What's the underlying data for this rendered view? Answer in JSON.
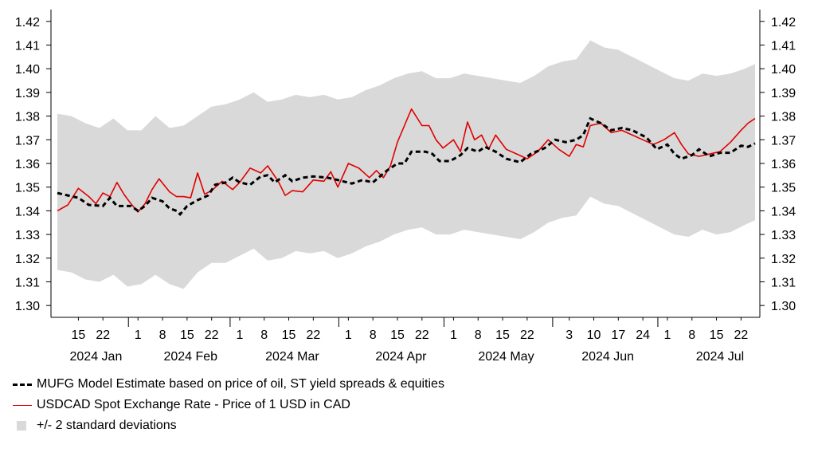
{
  "chart_data": {
    "type": "line",
    "ylim": [
      1.3,
      1.42
    ],
    "yticks": [
      1.3,
      1.31,
      1.32,
      1.33,
      1.34,
      1.35,
      1.36,
      1.37,
      1.38,
      1.39,
      1.4,
      1.41,
      1.42
    ],
    "ytick_labels": [
      "1.30",
      "1.31",
      "1.32",
      "1.33",
      "1.34",
      "1.35",
      "1.36",
      "1.37",
      "1.38",
      "1.39",
      "1.40",
      "1.41",
      "1.42"
    ],
    "xlim": [
      "2024-01-09",
      "2024-07-26"
    ],
    "xticks": [
      {
        "date": "2024-01-15",
        "label": "15"
      },
      {
        "date": "2024-01-22",
        "label": "22"
      },
      {
        "date": "2024-02-01",
        "label": "1"
      },
      {
        "date": "2024-02-08",
        "label": "8"
      },
      {
        "date": "2024-02-15",
        "label": "15"
      },
      {
        "date": "2024-02-22",
        "label": "22"
      },
      {
        "date": "2024-03-01",
        "label": "1"
      },
      {
        "date": "2024-03-08",
        "label": "8"
      },
      {
        "date": "2024-03-15",
        "label": "15"
      },
      {
        "date": "2024-03-22",
        "label": "22"
      },
      {
        "date": "2024-04-01",
        "label": "1"
      },
      {
        "date": "2024-04-08",
        "label": "8"
      },
      {
        "date": "2024-04-15",
        "label": "15"
      },
      {
        "date": "2024-04-22",
        "label": "22"
      },
      {
        "date": "2024-05-01",
        "label": "1"
      },
      {
        "date": "2024-05-08",
        "label": "8"
      },
      {
        "date": "2024-05-15",
        "label": "15"
      },
      {
        "date": "2024-05-22",
        "label": "22"
      },
      {
        "date": "2024-06-03",
        "label": "3"
      },
      {
        "date": "2024-06-10",
        "label": "10"
      },
      {
        "date": "2024-06-17",
        "label": "17"
      },
      {
        "date": "2024-06-24",
        "label": "24"
      },
      {
        "date": "2024-07-01",
        "label": "1"
      },
      {
        "date": "2024-07-08",
        "label": "8"
      },
      {
        "date": "2024-07-15",
        "label": "15"
      },
      {
        "date": "2024-07-22",
        "label": "22"
      }
    ],
    "month_labels": [
      {
        "date": "2024-01-20",
        "label": "2024 Jan"
      },
      {
        "date": "2024-02-16",
        "label": "2024 Feb"
      },
      {
        "date": "2024-03-16",
        "label": "2024 Mar"
      },
      {
        "date": "2024-04-16",
        "label": "2024 Apr"
      },
      {
        "date": "2024-05-16",
        "label": "2024 May"
      },
      {
        "date": "2024-06-14",
        "label": "2024 Jun"
      },
      {
        "date": "2024-07-16",
        "label": "2024 Jul"
      }
    ],
    "month_separators": [
      "2024-02-01",
      "2024-03-01",
      "2024-04-01",
      "2024-05-01",
      "2024-06-01",
      "2024-07-01"
    ],
    "grid": false,
    "legend_position": "bottom-left",
    "colors": {
      "model": "#000000",
      "spot": "#e00000",
      "band": "#d9d9d9"
    },
    "series": [
      {
        "name": "MUFG Model Estimate based on price of oil, ST yield spreads & equities",
        "style": "dashed",
        "points": [
          [
            "2024-01-09",
            1.3475
          ],
          [
            "2024-01-12",
            1.3465
          ],
          [
            "2024-01-15",
            1.3455
          ],
          [
            "2024-01-18",
            1.3425
          ],
          [
            "2024-01-22",
            1.342
          ],
          [
            "2024-01-24",
            1.3455
          ],
          [
            "2024-01-26",
            1.342
          ],
          [
            "2024-01-30",
            1.342
          ],
          [
            "2024-02-01",
            1.34
          ],
          [
            "2024-02-03",
            1.342
          ],
          [
            "2024-02-05",
            1.3455
          ],
          [
            "2024-02-08",
            1.344
          ],
          [
            "2024-02-10",
            1.341
          ],
          [
            "2024-02-12",
            1.34
          ],
          [
            "2024-02-13",
            1.3385
          ],
          [
            "2024-02-15",
            1.342
          ],
          [
            "2024-02-18",
            1.3445
          ],
          [
            "2024-02-21",
            1.3465
          ],
          [
            "2024-02-23",
            1.351
          ],
          [
            "2024-02-26",
            1.352
          ],
          [
            "2024-02-28",
            1.354
          ],
          [
            "2024-03-01",
            1.352
          ],
          [
            "2024-03-04",
            1.351
          ],
          [
            "2024-03-07",
            1.3545
          ],
          [
            "2024-03-09",
            1.355
          ],
          [
            "2024-03-11",
            1.352
          ],
          [
            "2024-03-14",
            1.355
          ],
          [
            "2024-03-16",
            1.3525
          ],
          [
            "2024-03-19",
            1.354
          ],
          [
            "2024-03-22",
            1.3545
          ],
          [
            "2024-03-26",
            1.354
          ],
          [
            "2024-03-29",
            1.353
          ],
          [
            "2024-04-02",
            1.3515
          ],
          [
            "2024-04-05",
            1.353
          ],
          [
            "2024-04-08",
            1.352
          ],
          [
            "2024-04-10",
            1.3545
          ],
          [
            "2024-04-12",
            1.357
          ],
          [
            "2024-04-15",
            1.36
          ],
          [
            "2024-04-17",
            1.36
          ],
          [
            "2024-04-19",
            1.365
          ],
          [
            "2024-04-23",
            1.365
          ],
          [
            "2024-04-25",
            1.364
          ],
          [
            "2024-04-27",
            1.361
          ],
          [
            "2024-04-30",
            1.361
          ],
          [
            "2024-05-03",
            1.3635
          ],
          [
            "2024-05-05",
            1.3665
          ],
          [
            "2024-05-08",
            1.365
          ],
          [
            "2024-05-10",
            1.367
          ],
          [
            "2024-05-13",
            1.365
          ],
          [
            "2024-05-16",
            1.362
          ],
          [
            "2024-05-20",
            1.3605
          ],
          [
            "2024-05-23",
            1.364
          ],
          [
            "2024-05-27",
            1.3665
          ],
          [
            "2024-05-30",
            1.37
          ],
          [
            "2024-06-02",
            1.369
          ],
          [
            "2024-06-05",
            1.37
          ],
          [
            "2024-06-07",
            1.372
          ],
          [
            "2024-06-09",
            1.379
          ],
          [
            "2024-06-12",
            1.377
          ],
          [
            "2024-06-15",
            1.374
          ],
          [
            "2024-06-18",
            1.375
          ],
          [
            "2024-06-21",
            1.374
          ],
          [
            "2024-06-25",
            1.371
          ],
          [
            "2024-06-28",
            1.366
          ],
          [
            "2024-07-01",
            1.368
          ],
          [
            "2024-07-03",
            1.364
          ],
          [
            "2024-07-05",
            1.362
          ],
          [
            "2024-07-08",
            1.3635
          ],
          [
            "2024-07-10",
            1.366
          ],
          [
            "2024-07-13",
            1.363
          ],
          [
            "2024-07-16",
            1.3645
          ],
          [
            "2024-07-19",
            1.3645
          ],
          [
            "2024-07-22",
            1.3675
          ],
          [
            "2024-07-24",
            1.367
          ],
          [
            "2024-07-26",
            1.3685
          ]
        ]
      },
      {
        "name": "USDCAD Spot Exchange Rate - Price of 1 USD in CAD",
        "style": "solid",
        "points": [
          [
            "2024-01-09",
            1.34
          ],
          [
            "2024-01-12",
            1.3425
          ],
          [
            "2024-01-15",
            1.3495
          ],
          [
            "2024-01-18",
            1.346
          ],
          [
            "2024-01-20",
            1.343
          ],
          [
            "2024-01-22",
            1.3475
          ],
          [
            "2024-01-24",
            1.346
          ],
          [
            "2024-01-26",
            1.352
          ],
          [
            "2024-01-28",
            1.347
          ],
          [
            "2024-01-30",
            1.343
          ],
          [
            "2024-02-01",
            1.3395
          ],
          [
            "2024-02-03",
            1.343
          ],
          [
            "2024-02-05",
            1.349
          ],
          [
            "2024-02-07",
            1.3535
          ],
          [
            "2024-02-10",
            1.348
          ],
          [
            "2024-02-12",
            1.346
          ],
          [
            "2024-02-14",
            1.346
          ],
          [
            "2024-02-16",
            1.3455
          ],
          [
            "2024-02-18",
            1.356
          ],
          [
            "2024-02-20",
            1.347
          ],
          [
            "2024-02-22",
            1.3485
          ],
          [
            "2024-02-25",
            1.3525
          ],
          [
            "2024-02-28",
            1.349
          ],
          [
            "2024-03-01",
            1.352
          ],
          [
            "2024-03-04",
            1.358
          ],
          [
            "2024-03-07",
            1.356
          ],
          [
            "2024-03-09",
            1.359
          ],
          [
            "2024-03-12",
            1.3525
          ],
          [
            "2024-03-14",
            1.3465
          ],
          [
            "2024-03-16",
            1.3485
          ],
          [
            "2024-03-19",
            1.348
          ],
          [
            "2024-03-22",
            1.353
          ],
          [
            "2024-03-25",
            1.3525
          ],
          [
            "2024-03-27",
            1.3565
          ],
          [
            "2024-03-29",
            1.35
          ],
          [
            "2024-04-01",
            1.36
          ],
          [
            "2024-04-04",
            1.358
          ],
          [
            "2024-04-07",
            1.354
          ],
          [
            "2024-04-09",
            1.357
          ],
          [
            "2024-04-11",
            1.354
          ],
          [
            "2024-04-13",
            1.359
          ],
          [
            "2024-04-15",
            1.369
          ],
          [
            "2024-04-17",
            1.376
          ],
          [
            "2024-04-19",
            1.383
          ],
          [
            "2024-04-22",
            1.376
          ],
          [
            "2024-04-24",
            1.376
          ],
          [
            "2024-04-26",
            1.37
          ],
          [
            "2024-04-28",
            1.3665
          ],
          [
            "2024-05-01",
            1.37
          ],
          [
            "2024-05-03",
            1.365
          ],
          [
            "2024-05-05",
            1.3775
          ],
          [
            "2024-05-07",
            1.37
          ],
          [
            "2024-05-09",
            1.372
          ],
          [
            "2024-05-11",
            1.366
          ],
          [
            "2024-05-13",
            1.372
          ],
          [
            "2024-05-16",
            1.366
          ],
          [
            "2024-05-19",
            1.364
          ],
          [
            "2024-05-22",
            1.362
          ],
          [
            "2024-05-25",
            1.365
          ],
          [
            "2024-05-28",
            1.37
          ],
          [
            "2024-05-31",
            1.366
          ],
          [
            "2024-06-03",
            1.363
          ],
          [
            "2024-06-05",
            1.368
          ],
          [
            "2024-06-07",
            1.367
          ],
          [
            "2024-06-09",
            1.376
          ],
          [
            "2024-06-12",
            1.377
          ],
          [
            "2024-06-15",
            1.373
          ],
          [
            "2024-06-18",
            1.374
          ],
          [
            "2024-06-21",
            1.372
          ],
          [
            "2024-06-24",
            1.37
          ],
          [
            "2024-06-27",
            1.368
          ],
          [
            "2024-06-30",
            1.37
          ],
          [
            "2024-07-03",
            1.373
          ],
          [
            "2024-07-05",
            1.368
          ],
          [
            "2024-07-07",
            1.364
          ],
          [
            "2024-07-10",
            1.363
          ],
          [
            "2024-07-13",
            1.364
          ],
          [
            "2024-07-16",
            1.365
          ],
          [
            "2024-07-19",
            1.369
          ],
          [
            "2024-07-22",
            1.374
          ],
          [
            "2024-07-24",
            1.377
          ],
          [
            "2024-07-26",
            1.379
          ]
        ]
      },
      {
        "name": "+/- 2 standard deviations",
        "style": "band",
        "points": [
          [
            "2024-01-09",
            1.315,
            1.381
          ],
          [
            "2024-01-13",
            1.314,
            1.38
          ],
          [
            "2024-01-17",
            1.311,
            1.377
          ],
          [
            "2024-01-21",
            1.31,
            1.375
          ],
          [
            "2024-01-25",
            1.313,
            1.379
          ],
          [
            "2024-01-29",
            1.308,
            1.374
          ],
          [
            "2024-02-02",
            1.309,
            1.374
          ],
          [
            "2024-02-06",
            1.313,
            1.38
          ],
          [
            "2024-02-10",
            1.309,
            1.375
          ],
          [
            "2024-02-14",
            1.307,
            1.376
          ],
          [
            "2024-02-18",
            1.314,
            1.38
          ],
          [
            "2024-02-22",
            1.318,
            1.384
          ],
          [
            "2024-02-26",
            1.318,
            1.385
          ],
          [
            "2024-03-01",
            1.321,
            1.387
          ],
          [
            "2024-03-05",
            1.324,
            1.39
          ],
          [
            "2024-03-09",
            1.319,
            1.386
          ],
          [
            "2024-03-13",
            1.32,
            1.387
          ],
          [
            "2024-03-17",
            1.323,
            1.389
          ],
          [
            "2024-03-21",
            1.322,
            1.388
          ],
          [
            "2024-03-25",
            1.323,
            1.389
          ],
          [
            "2024-03-29",
            1.32,
            1.387
          ],
          [
            "2024-04-02",
            1.322,
            1.388
          ],
          [
            "2024-04-06",
            1.325,
            1.391
          ],
          [
            "2024-04-10",
            1.327,
            1.393
          ],
          [
            "2024-04-14",
            1.33,
            1.396
          ],
          [
            "2024-04-18",
            1.332,
            1.398
          ],
          [
            "2024-04-22",
            1.333,
            1.399
          ],
          [
            "2024-04-26",
            1.33,
            1.396
          ],
          [
            "2024-04-30",
            1.33,
            1.396
          ],
          [
            "2024-05-04",
            1.332,
            1.398
          ],
          [
            "2024-05-08",
            1.331,
            1.397
          ],
          [
            "2024-05-12",
            1.33,
            1.396
          ],
          [
            "2024-05-16",
            1.329,
            1.395
          ],
          [
            "2024-05-20",
            1.328,
            1.394
          ],
          [
            "2024-05-24",
            1.331,
            1.397
          ],
          [
            "2024-05-28",
            1.335,
            1.401
          ],
          [
            "2024-06-01",
            1.337,
            1.403
          ],
          [
            "2024-06-05",
            1.338,
            1.404
          ],
          [
            "2024-06-09",
            1.346,
            1.412
          ],
          [
            "2024-06-13",
            1.343,
            1.409
          ],
          [
            "2024-06-17",
            1.342,
            1.408
          ],
          [
            "2024-06-21",
            1.339,
            1.405
          ],
          [
            "2024-06-25",
            1.336,
            1.402
          ],
          [
            "2024-06-29",
            1.333,
            1.399
          ],
          [
            "2024-07-03",
            1.33,
            1.396
          ],
          [
            "2024-07-07",
            1.329,
            1.395
          ],
          [
            "2024-07-11",
            1.332,
            1.398
          ],
          [
            "2024-07-15",
            1.33,
            1.397
          ],
          [
            "2024-07-19",
            1.331,
            1.398
          ],
          [
            "2024-07-23",
            1.334,
            1.4
          ],
          [
            "2024-07-26",
            1.336,
            1.402
          ]
        ]
      }
    ]
  },
  "legend": {
    "items": [
      {
        "label": "MUFG Model Estimate based on price of oil, ST yield spreads & equities"
      },
      {
        "label": "USDCAD Spot Exchange Rate - Price of 1 USD in CAD"
      },
      {
        "label": "+/- 2 standard deviations"
      }
    ]
  }
}
